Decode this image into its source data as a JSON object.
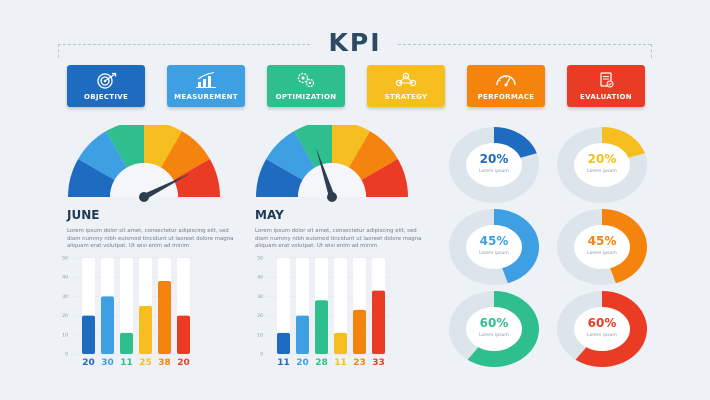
{
  "title": "KPI",
  "cards": [
    {
      "label": "OBJECTIVE",
      "color": "#1f6bbf",
      "icon": "target-icon"
    },
    {
      "label": "MEASUREMENT",
      "color": "#3f9fe3",
      "icon": "bar-chart-icon"
    },
    {
      "label": "OPTIMIZATION",
      "color": "#2fbf8f",
      "icon": "gears-icon"
    },
    {
      "label": "STRATEGY",
      "color": "#f6be1f",
      "icon": "network-icon"
    },
    {
      "label": "PERFORMACE",
      "color": "#f4840e",
      "icon": "speedometer-icon"
    },
    {
      "label": "EVALUATION",
      "color": "#ea3b24",
      "icon": "document-check-icon"
    }
  ],
  "segment_colors": [
    "#1f6bbf",
    "#3f9fe3",
    "#2fbf8f",
    "#f6be1f",
    "#f4840e",
    "#ea3b24"
  ],
  "gauges": [
    {
      "name": "June",
      "needle_value": 0.85
    },
    {
      "name": "May",
      "needle_value": 0.4
    }
  ],
  "chart_data": [
    {
      "type": "bar",
      "title": "JUNE",
      "description": "Lorem ipsum dolor sit amet, consectetur adipiscing elit, sed diam nummy nibh euismod tincidunt ut laoreet dolore magna aliquam erat volutpat. Ut wisi enim ad minim",
      "values": [
        20,
        30,
        11,
        25,
        38,
        20
      ],
      "value_labels": [
        "20",
        "30",
        "11",
        "25",
        "38",
        "20"
      ],
      "colors": [
        "#1f6bbf",
        "#3f9fe3",
        "#2fbf8f",
        "#f6be1f",
        "#f4840e",
        "#ea3b24"
      ],
      "y_ticks": [
        "50",
        "40",
        "30",
        "20",
        "10",
        "0"
      ],
      "ylim": [
        0,
        50
      ],
      "grid": true
    },
    {
      "type": "bar",
      "title": "MAY",
      "description": "Lorem ipsum dolor sit amet, consectetur adipiscing elit, sed diam nummy nibh euismod tincidunt ut laoreet dolore magna aliquam erat volutpat. Ut wisi enim ad minim",
      "values": [
        11,
        20,
        28,
        11,
        23,
        33
      ],
      "value_labels": [
        "11",
        "20",
        "28",
        "11",
        "23",
        "33"
      ],
      "colors": [
        "#1f6bbf",
        "#3f9fe3",
        "#2fbf8f",
        "#f6be1f",
        "#f4840e",
        "#ea3b24"
      ],
      "y_ticks": [
        "50",
        "40",
        "30",
        "20",
        "10",
        "0"
      ],
      "ylim": [
        0,
        50
      ],
      "grid": true
    }
  ],
  "rings": [
    {
      "percent": 20,
      "label": "20%",
      "caption": "Lorem ipsum",
      "color": "#1f6bbf"
    },
    {
      "percent": 20,
      "label": "20%",
      "caption": "Lorem ipsum",
      "color": "#f6be1f"
    },
    {
      "percent": 45,
      "label": "45%",
      "caption": "Lorem ipsum",
      "color": "#3f9fe3"
    },
    {
      "percent": 45,
      "label": "45%",
      "caption": "Lorem ipsum",
      "color": "#f4840e"
    },
    {
      "percent": 60,
      "label": "60%",
      "caption": "Lorem ipsum",
      "color": "#2fbf8f"
    },
    {
      "percent": 60,
      "label": "60%",
      "caption": "Lorem ipsum",
      "color": "#ea3b24"
    }
  ]
}
